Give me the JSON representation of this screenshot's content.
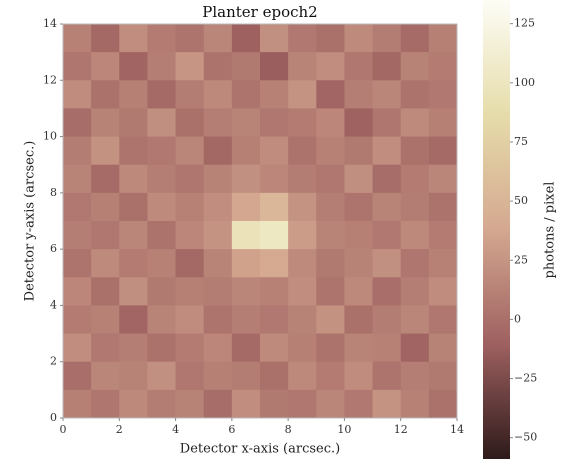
{
  "chart_data": {
    "type": "heatmap",
    "title": "Planter epoch2",
    "xlabel": "Detector x-axis (arcsec.)",
    "ylabel": "Detector y-axis (arcsec.)",
    "colorbar_label": "photons / pixel",
    "xlim": [
      0,
      14
    ],
    "ylim": [
      0,
      14
    ],
    "xticks": [
      0,
      2,
      4,
      6,
      8,
      10,
      12,
      14
    ],
    "yticks": [
      0,
      2,
      4,
      6,
      8,
      10,
      12,
      14
    ],
    "clim": [
      -59,
      135
    ],
    "cticks": [
      {
        "value": -50,
        "label": "−50"
      },
      {
        "value": -25,
        "label": "−25"
      },
      0,
      25,
      50,
      75,
      100,
      125
    ],
    "colormap": [
      "#2e1a1a",
      "#9e6060",
      "#d4a890",
      "#e6dcaa",
      "#fdfdf6"
    ],
    "values": [
      [
        12,
        -5,
        20,
        8,
        3,
        15,
        -10,
        22,
        6,
        0,
        18,
        9,
        -3,
        11
      ],
      [
        4,
        16,
        -8,
        10,
        25,
        2,
        7,
        -12,
        14,
        20,
        5,
        -6,
        13,
        8
      ],
      [
        19,
        1,
        11,
        -4,
        9,
        17,
        3,
        12,
        24,
        -7,
        10,
        15,
        2,
        6
      ],
      [
        -2,
        13,
        7,
        21,
        0,
        10,
        14,
        5,
        8,
        16,
        -9,
        4,
        18,
        11
      ],
      [
        9,
        23,
        3,
        6,
        15,
        -6,
        11,
        19,
        2,
        12,
        7,
        20,
        1,
        -4
      ],
      [
        14,
        -3,
        17,
        10,
        4,
        13,
        22,
        16,
        9,
        5,
        21,
        -2,
        8,
        15
      ],
      [
        6,
        11,
        0,
        18,
        12,
        20,
        38,
        52,
        24,
        10,
        3,
        14,
        9,
        2
      ],
      [
        10,
        5,
        15,
        2,
        16,
        24,
        96,
        102,
        30,
        14,
        11,
        6,
        17,
        8
      ],
      [
        3,
        18,
        8,
        12,
        -5,
        14,
        34,
        40,
        18,
        7,
        13,
        22,
        4,
        12
      ],
      [
        16,
        0,
        21,
        7,
        11,
        9,
        15,
        12,
        20,
        3,
        17,
        -1,
        10,
        19
      ],
      [
        8,
        12,
        -7,
        14,
        19,
        3,
        10,
        6,
        13,
        23,
        0,
        9,
        15,
        5
      ],
      [
        20,
        6,
        10,
        1,
        8,
        16,
        -4,
        18,
        11,
        2,
        14,
        12,
        -8,
        13
      ],
      [
        -1,
        15,
        13,
        22,
        5,
        11,
        9,
        0,
        17,
        8,
        19,
        3,
        10,
        7
      ],
      [
        11,
        4,
        17,
        9,
        13,
        -2,
        20,
        7,
        5,
        15,
        6,
        24,
        12,
        1
      ]
    ]
  }
}
